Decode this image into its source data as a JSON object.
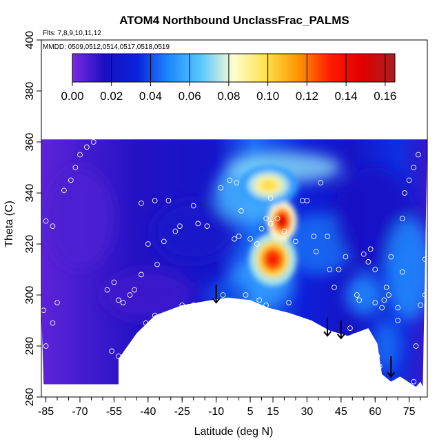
{
  "chart_data": {
    "type": "heatmap",
    "title": "ATOM4 Northbound UnclassFrac_PALMS",
    "annotations": {
      "flights": "Flts: 7,8,9,10,11,12",
      "dates": "MMDD: 0509,0512,0514,0517,0518,0519"
    },
    "xlabel": "Latitude (deg N)",
    "ylabel": "Theta (C)",
    "xlim": [
      -87,
      83
    ],
    "ylim": [
      260,
      400
    ],
    "xticks": [
      -85,
      -70,
      -55,
      -40,
      -25,
      -10,
      5,
      15,
      30,
      45,
      60,
      75
    ],
    "xticklabels": [
      "-85",
      "-70",
      "-55",
      "-40",
      "-25",
      "-10",
      "5",
      "15",
      "30",
      "45",
      "60",
      "75"
    ],
    "yticks": [
      260,
      280,
      300,
      320,
      340,
      360,
      380,
      400
    ],
    "yticklabels": [
      "260",
      "280",
      "300",
      "320",
      "340",
      "360",
      "380",
      "400"
    ],
    "colorbar": {
      "range": [
        0,
        0.165
      ],
      "ticks": [
        0,
        0.02,
        0.04,
        0.06,
        0.08,
        0.1,
        0.12,
        0.14,
        0.16
      ],
      "ticklabels": [
        "0.00",
        "0.02",
        "0.04",
        "0.06",
        "0.08",
        "0.10",
        "0.12",
        "0.14",
        "0.16"
      ],
      "colors": [
        "#7b2be2",
        "#1a0fc0",
        "#0a22dd",
        "#1e8aff",
        "#5ac8ff",
        "#fefecf",
        "#ffe14a",
        "#ff9500",
        "#ff1a00",
        "#e00000",
        "#a82020"
      ]
    },
    "field": {
      "top_theta": 361,
      "bottom_edge": [
        [
          -87,
          294
        ],
        [
          -86,
          265
        ],
        [
          -53,
          265
        ],
        [
          -53,
          275
        ],
        [
          -45,
          285
        ],
        [
          -37,
          292
        ],
        [
          -25,
          296
        ],
        [
          -12,
          298
        ],
        [
          -5,
          299
        ],
        [
          5,
          298
        ],
        [
          13,
          295
        ],
        [
          22,
          293
        ],
        [
          32,
          290
        ],
        [
          40,
          286
        ],
        [
          48,
          284
        ],
        [
          57,
          287
        ],
        [
          61,
          281
        ],
        [
          63,
          269
        ],
        [
          67,
          266
        ],
        [
          71,
          268
        ],
        [
          78,
          264
        ],
        [
          80,
          266
        ],
        [
          81,
          264
        ]
      ],
      "hotspots": [
        {
          "lat": 15,
          "theta": 314,
          "value": 0.135,
          "spread_lat": 4,
          "spread_theta": 4
        },
        {
          "lat": 19,
          "theta": 329,
          "value": 0.15,
          "spread_lat": 2.5,
          "spread_theta": 3
        },
        {
          "lat": 13,
          "theta": 343,
          "value": 0.1,
          "spread_lat": 5,
          "spread_theta": 3
        }
      ]
    },
    "observations": [
      [
        -86,
        294
      ],
      [
        -85,
        280
      ],
      [
        -82,
        289
      ],
      [
        -80,
        297
      ],
      [
        -82,
        327
      ],
      [
        -85,
        329
      ],
      [
        -77,
        341
      ],
      [
        -74,
        345
      ],
      [
        -72,
        350
      ],
      [
        -70,
        355
      ],
      [
        -67,
        358
      ],
      [
        -64,
        360
      ],
      [
        -58,
        302
      ],
      [
        -55,
        305
      ],
      [
        -53,
        298
      ],
      [
        -51,
        297
      ],
      [
        -56,
        278
      ],
      [
        -53,
        276
      ],
      [
        -48,
        300
      ],
      [
        -46,
        302
      ],
      [
        -43,
        308
      ],
      [
        -41,
        289
      ],
      [
        -37,
        292
      ],
      [
        -36,
        312
      ],
      [
        -40,
        320
      ],
      [
        -43,
        336
      ],
      [
        -37,
        337
      ],
      [
        -33,
        321
      ],
      [
        -31,
        337
      ],
      [
        -28,
        325
      ],
      [
        -26,
        327
      ],
      [
        -25,
        296
      ],
      [
        -20,
        296
      ],
      [
        -20,
        335
      ],
      [
        -18,
        328
      ],
      [
        -14,
        327
      ],
      [
        -12,
        289
      ],
      [
        -8,
        296
      ],
      [
        -7,
        300
      ],
      [
        -8,
        342
      ],
      [
        -4,
        345
      ],
      [
        -1,
        344
      ],
      [
        1,
        333
      ],
      [
        0,
        323
      ],
      [
        -2,
        322
      ],
      [
        3,
        300
      ],
      [
        5,
        322
      ],
      [
        8,
        320
      ],
      [
        10,
        326
      ],
      [
        12,
        330
      ],
      [
        12,
        296
      ],
      [
        9,
        298
      ],
      [
        14,
        338
      ],
      [
        14,
        328
      ],
      [
        17,
        330
      ],
      [
        20,
        325
      ],
      [
        22,
        297
      ],
      [
        25,
        321
      ],
      [
        28,
        337
      ],
      [
        30,
        337
      ],
      [
        33,
        323
      ],
      [
        34,
        317
      ],
      [
        36,
        344
      ],
      [
        39,
        323
      ],
      [
        40,
        310
      ],
      [
        42,
        303
      ],
      [
        44,
        310
      ],
      [
        47,
        315
      ],
      [
        49,
        287
      ],
      [
        51,
        284
      ],
      [
        52,
        300
      ],
      [
        53,
        298
      ],
      [
        55,
        316
      ],
      [
        57,
        313
      ],
      [
        58,
        318
      ],
      [
        60,
        297
      ],
      [
        60,
        310
      ],
      [
        61,
        276
      ],
      [
        62,
        272
      ],
      [
        62,
        267
      ],
      [
        63,
        295
      ],
      [
        64,
        298
      ],
      [
        65,
        303
      ],
      [
        66,
        300
      ],
      [
        67,
        315
      ],
      [
        70,
        290
      ],
      [
        70,
        295
      ],
      [
        72,
        309
      ],
      [
        72,
        330
      ],
      [
        73,
        340
      ],
      [
        75,
        345
      ],
      [
        77,
        350
      ],
      [
        79,
        355
      ],
      [
        80,
        296
      ],
      [
        82,
        300
      ],
      [
        82,
        314
      ],
      [
        78,
        280
      ],
      [
        77,
        266
      ]
    ],
    "arrows": [
      {
        "lat": -10,
        "theta_from": 304,
        "theta_to": 297
      },
      {
        "lat": 39,
        "theta_from": 291,
        "theta_to": 284
      },
      {
        "lat": 45,
        "theta_from": 290,
        "theta_to": 283
      },
      {
        "lat": 67,
        "theta_from": 276,
        "theta_to": 268
      }
    ]
  }
}
